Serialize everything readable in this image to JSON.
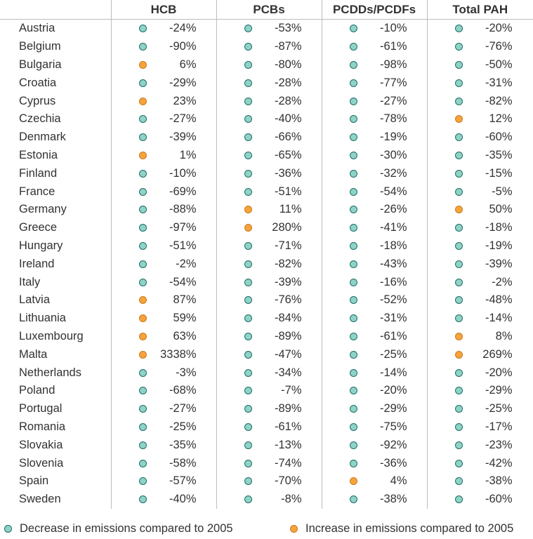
{
  "chart_data": {
    "type": "table",
    "columns": [
      "HCB",
      "PCBs",
      "PCDDs/PCDFs",
      "Total PAH"
    ],
    "rows": [
      {
        "country": "Austria",
        "values": [
          "-24%",
          "-53%",
          "-10%",
          "-20%"
        ],
        "trend": [
          "dec",
          "dec",
          "dec",
          "dec"
        ]
      },
      {
        "country": "Belgium",
        "values": [
          "-90%",
          "-87%",
          "-61%",
          "-76%"
        ],
        "trend": [
          "dec",
          "dec",
          "dec",
          "dec"
        ]
      },
      {
        "country": "Bulgaria",
        "values": [
          "6%",
          "-80%",
          "-98%",
          "-50%"
        ],
        "trend": [
          "inc",
          "dec",
          "dec",
          "dec"
        ]
      },
      {
        "country": "Croatia",
        "values": [
          "-29%",
          "-28%",
          "-77%",
          "-31%"
        ],
        "trend": [
          "dec",
          "dec",
          "dec",
          "dec"
        ]
      },
      {
        "country": "Cyprus",
        "values": [
          "23%",
          "-28%",
          "-27%",
          "-82%"
        ],
        "trend": [
          "inc",
          "dec",
          "dec",
          "dec"
        ]
      },
      {
        "country": "Czechia",
        "values": [
          "-27%",
          "-40%",
          "-78%",
          "12%"
        ],
        "trend": [
          "dec",
          "dec",
          "dec",
          "inc"
        ]
      },
      {
        "country": "Denmark",
        "values": [
          "-39%",
          "-66%",
          "-19%",
          "-60%"
        ],
        "trend": [
          "dec",
          "dec",
          "dec",
          "dec"
        ]
      },
      {
        "country": "Estonia",
        "values": [
          "1%",
          "-65%",
          "-30%",
          "-35%"
        ],
        "trend": [
          "inc",
          "dec",
          "dec",
          "dec"
        ]
      },
      {
        "country": "Finland",
        "values": [
          "-10%",
          "-36%",
          "-32%",
          "-15%"
        ],
        "trend": [
          "dec",
          "dec",
          "dec",
          "dec"
        ]
      },
      {
        "country": "France",
        "values": [
          "-69%",
          "-51%",
          "-54%",
          "-5%"
        ],
        "trend": [
          "dec",
          "dec",
          "dec",
          "dec"
        ]
      },
      {
        "country": "Germany",
        "values": [
          "-88%",
          "11%",
          "-26%",
          "50%"
        ],
        "trend": [
          "dec",
          "inc",
          "dec",
          "inc"
        ]
      },
      {
        "country": "Greece",
        "values": [
          "-97%",
          "280%",
          "-41%",
          "-18%"
        ],
        "trend": [
          "dec",
          "inc",
          "dec",
          "dec"
        ]
      },
      {
        "country": "Hungary",
        "values": [
          "-51%",
          "-71%",
          "-18%",
          "-19%"
        ],
        "trend": [
          "dec",
          "dec",
          "dec",
          "dec"
        ]
      },
      {
        "country": "Ireland",
        "values": [
          "-2%",
          "-82%",
          "-43%",
          "-39%"
        ],
        "trend": [
          "dec",
          "dec",
          "dec",
          "dec"
        ]
      },
      {
        "country": "Italy",
        "values": [
          "-54%",
          "-39%",
          "-16%",
          "-2%"
        ],
        "trend": [
          "dec",
          "dec",
          "dec",
          "dec"
        ]
      },
      {
        "country": "Latvia",
        "values": [
          "87%",
          "-76%",
          "-52%",
          "-48%"
        ],
        "trend": [
          "inc",
          "dec",
          "dec",
          "dec"
        ]
      },
      {
        "country": "Lithuania",
        "values": [
          "59%",
          "-84%",
          "-31%",
          "-14%"
        ],
        "trend": [
          "inc",
          "dec",
          "dec",
          "dec"
        ]
      },
      {
        "country": "Luxembourg",
        "values": [
          "63%",
          "-89%",
          "-61%",
          "8%"
        ],
        "trend": [
          "inc",
          "dec",
          "dec",
          "inc"
        ]
      },
      {
        "country": "Malta",
        "values": [
          "3338%",
          "-47%",
          "-25%",
          "269%"
        ],
        "trend": [
          "inc",
          "dec",
          "dec",
          "inc"
        ]
      },
      {
        "country": "Netherlands",
        "values": [
          "-3%",
          "-34%",
          "-14%",
          "-20%"
        ],
        "trend": [
          "dec",
          "dec",
          "dec",
          "dec"
        ]
      },
      {
        "country": "Poland",
        "values": [
          "-68%",
          "-7%",
          "-20%",
          "-29%"
        ],
        "trend": [
          "dec",
          "dec",
          "dec",
          "dec"
        ]
      },
      {
        "country": "Portugal",
        "values": [
          "-27%",
          "-89%",
          "-29%",
          "-25%"
        ],
        "trend": [
          "dec",
          "dec",
          "dec",
          "dec"
        ]
      },
      {
        "country": "Romania",
        "values": [
          "-25%",
          "-61%",
          "-75%",
          "-17%"
        ],
        "trend": [
          "dec",
          "dec",
          "dec",
          "dec"
        ]
      },
      {
        "country": "Slovakia",
        "values": [
          "-35%",
          "-13%",
          "-92%",
          "-23%"
        ],
        "trend": [
          "dec",
          "dec",
          "dec",
          "dec"
        ]
      },
      {
        "country": "Slovenia",
        "values": [
          "-58%",
          "-74%",
          "-36%",
          "-42%"
        ],
        "trend": [
          "dec",
          "dec",
          "dec",
          "dec"
        ]
      },
      {
        "country": "Spain",
        "values": [
          "-57%",
          "-70%",
          "4%",
          "-38%"
        ],
        "trend": [
          "dec",
          "dec",
          "inc",
          "dec"
        ]
      },
      {
        "country": "Sweden",
        "values": [
          "-40%",
          "-8%",
          "-38%",
          "-60%"
        ],
        "trend": [
          "dec",
          "dec",
          "dec",
          "dec"
        ]
      }
    ],
    "legend": [
      {
        "key": "dec",
        "label": "Decrease in emissions compared to 2005",
        "color": "#8fd3c6"
      },
      {
        "key": "inc",
        "label": "Increase in emissions compared to 2005",
        "color": "#f7a33c"
      }
    ]
  }
}
